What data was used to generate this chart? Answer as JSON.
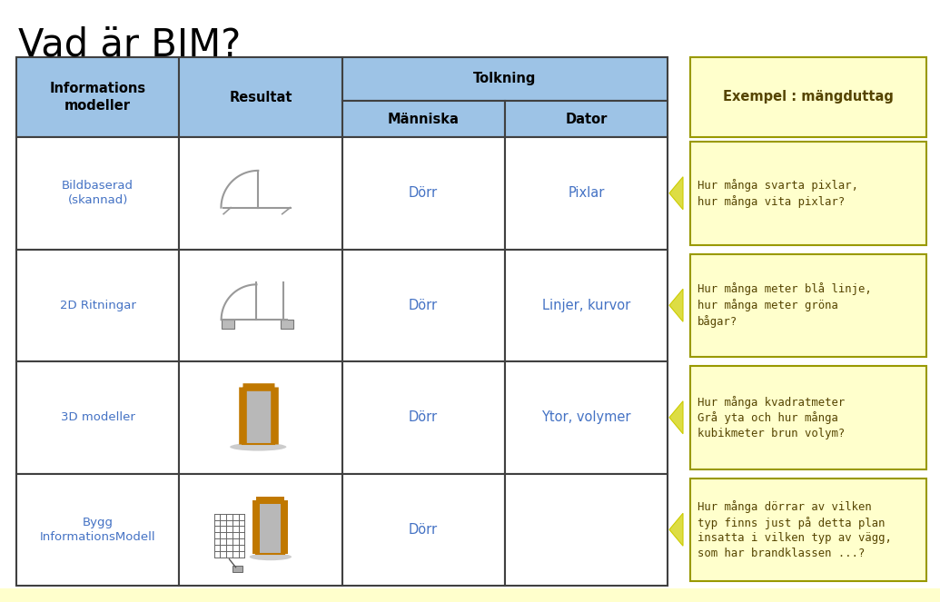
{
  "title": "Vad är BIM?",
  "title_fontsize": 30,
  "title_color": "#000000",
  "background_color": "#ffffff",
  "table_border_color": "#404040",
  "header_bg_color": "#9DC3E6",
  "header_text_color": "#000000",
  "cell_bg_color": "#ffffff",
  "cell_text_color": "#4472C4",
  "dorr_text_color": "#4472C4",
  "yellow_box_bg": "#FFFFCC",
  "yellow_box_border": "#999900",
  "arrow_fill_color": "#DDDD44",
  "arrow_edge_color": "#AAAAAA",
  "row_labels": [
    "Bildbaserad\n(skannad)",
    "2D Ritningar",
    "3D modeller",
    "Bygg\nInformationsModell"
  ],
  "manniska_values": [
    "Dörr",
    "Dörr",
    "Dörr",
    "Dörr"
  ],
  "dator_values": [
    "Pixlar",
    "Linjer, kurvor",
    "Ytor, volymer",
    ""
  ],
  "example_header": "Exempel : mängduttag",
  "example_boxes": [
    "Hur många svarta pixlar,\nhur många vita pixlar?",
    "Hur många meter blå linje,\nhur många meter gröna\nbågar?",
    "Hur många kvadratmeter\nGrå yta och hur många\nkubikmeter brun volym?",
    "Hur många dörrar av vilken\ntyp finns just på detta plan\ninsatta i vilken typ av vägg,\nsom har brandklassen ...?"
  ]
}
